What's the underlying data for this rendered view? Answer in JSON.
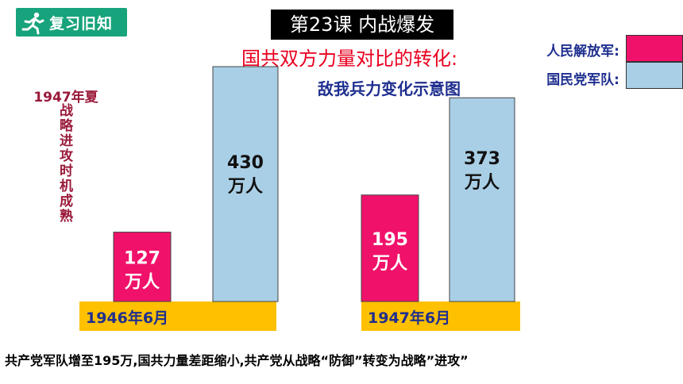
{
  "badge": {
    "label": "复习旧知",
    "icon": "runner-icon"
  },
  "lesson_title": "第23课 内战爆发",
  "compare_title": "国共双方力量对比的转化:",
  "side_note": {
    "year": "1947年夏",
    "text": "战略进攻时机成熟"
  },
  "footer": "共产党军队增至195万,国共力量差距缩小,共产党从战略“防御”转变为战略”进攻”",
  "colors": {
    "pla": "#f0126a",
    "kmt": "#a9cfe6",
    "base": "#ffc000",
    "badge": "#17a37b"
  },
  "chart_data": {
    "type": "bar",
    "title": "敌我兵力变化示意图",
    "categories": [
      "1946年6月",
      "1947年6月"
    ],
    "unit": "万人",
    "series": [
      {
        "name": "人民解放军:",
        "values": [
          127,
          195
        ],
        "labels": [
          "127",
          "195"
        ]
      },
      {
        "name": "国民党军队:",
        "values": [
          430,
          373
        ],
        "labels": [
          "430",
          "373"
        ]
      }
    ],
    "legend": "top-right",
    "ylim": [
      0,
      430
    ],
    "grid": false
  }
}
